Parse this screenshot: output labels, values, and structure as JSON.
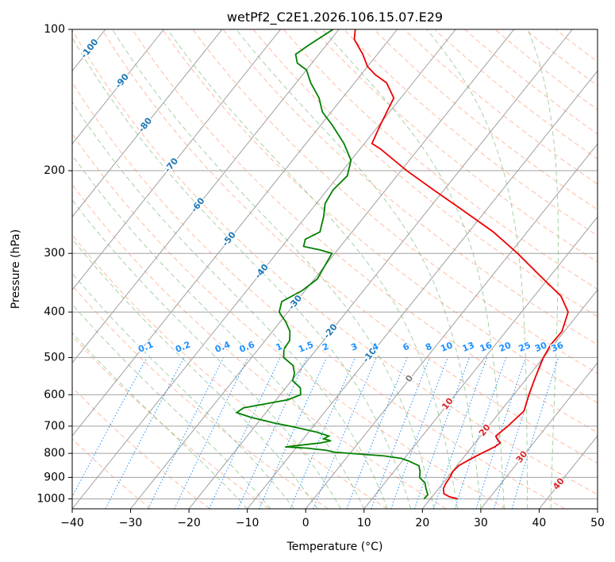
{
  "chart_data": {
    "type": "line",
    "title": "wetPf2_C2E1.2026.106.15.07.E29",
    "xlabel": "Temperature (°C)",
    "ylabel": "Pressure (hPa)",
    "xlim": [
      -40,
      50
    ],
    "ylim": [
      1050,
      100
    ],
    "x_ticks": [
      -40,
      -30,
      -20,
      -10,
      0,
      10,
      20,
      30,
      40,
      50
    ],
    "x_tick_labels": [
      "−40",
      "−30",
      "−20",
      "−10",
      "0",
      "10",
      "20",
      "30",
      "40",
      "50"
    ],
    "y_ticks": [
      1000,
      900,
      800,
      700,
      600,
      500,
      400,
      300,
      200,
      100
    ],
    "y_tick_labels": [
      "1000",
      "900",
      "800",
      "700",
      "600",
      "500",
      "400",
      "300",
      "200",
      "100"
    ],
    "grid": true,
    "colors": {
      "temperature": "#ee0000",
      "dewpoint": "#008000",
      "isotherm": "#a0a0a0",
      "dry_adiabat": "#ffa07a",
      "moist_adiabat": "#7fbf7f",
      "mixing_ratio": "#1e90ff",
      "isotherm_label": "#1f77b4",
      "zero_label": "#808080",
      "warm_label": "#d62728"
    },
    "series": [
      {
        "name": "Temperature",
        "points": [
          [
            1000,
            24.7
          ],
          [
            990,
            23.0
          ],
          [
            975,
            21.6
          ],
          [
            950,
            20.8
          ],
          [
            925,
            20.5
          ],
          [
            900,
            20.4
          ],
          [
            875,
            20.1
          ],
          [
            850,
            20.3
          ],
          [
            825,
            21.3
          ],
          [
            800,
            22.5
          ],
          [
            775,
            23.9
          ],
          [
            760,
            24.3
          ],
          [
            745,
            23.2
          ],
          [
            735,
            22.6
          ],
          [
            700,
            23.3
          ],
          [
            650,
            24.0
          ],
          [
            600,
            22.6
          ],
          [
            550,
            21.3
          ],
          [
            500,
            20.0
          ],
          [
            470,
            19.5
          ],
          [
            440,
            19.6
          ],
          [
            400,
            18.0
          ],
          [
            370,
            14.6
          ],
          [
            340,
            9.2
          ],
          [
            300,
            1.3
          ],
          [
            270,
            -5.8
          ],
          [
            240,
            -14.9
          ],
          [
            220,
            -21.7
          ],
          [
            200,
            -29.0
          ],
          [
            180,
            -36.4
          ],
          [
            175,
            -38.7
          ],
          [
            160,
            -39.8
          ],
          [
            140,
            -41.2
          ],
          [
            130,
            -44.5
          ],
          [
            125,
            -47.5
          ],
          [
            120,
            -50.0
          ],
          [
            113,
            -52.5
          ],
          [
            105,
            -56.0
          ],
          [
            100,
            -57.2
          ]
        ]
      },
      {
        "name": "Dewpoint",
        "points": [
          [
            1000,
            18.9
          ],
          [
            980,
            19.0
          ],
          [
            950,
            17.8
          ],
          [
            925,
            16.9
          ],
          [
            900,
            15.2
          ],
          [
            875,
            14.5
          ],
          [
            850,
            13.5
          ],
          [
            830,
            11.0
          ],
          [
            820,
            9.5
          ],
          [
            810,
            6.2
          ],
          [
            800,
            0.0
          ],
          [
            795,
            -3.0
          ],
          [
            788,
            -4.5
          ],
          [
            780,
            -8.0
          ],
          [
            775,
            -12.0
          ],
          [
            760,
            -6.5
          ],
          [
            752,
            -5.0
          ],
          [
            745,
            -6.5
          ],
          [
            735,
            -6.0
          ],
          [
            720,
            -8.8
          ],
          [
            700,
            -14.0
          ],
          [
            690,
            -17.0
          ],
          [
            670,
            -22.0
          ],
          [
            655,
            -25.0
          ],
          [
            640,
            -24.5
          ],
          [
            615,
            -18.0
          ],
          [
            600,
            -16.5
          ],
          [
            580,
            -17.5
          ],
          [
            560,
            -19.8
          ],
          [
            540,
            -20.5
          ],
          [
            520,
            -21.8
          ],
          [
            500,
            -24.5
          ],
          [
            480,
            -25.6
          ],
          [
            460,
            -25.8
          ],
          [
            440,
            -27.0
          ],
          [
            420,
            -29.0
          ],
          [
            400,
            -31.5
          ],
          [
            380,
            -32.5
          ],
          [
            360,
            -30.5
          ],
          [
            340,
            -29.5
          ],
          [
            320,
            -30.0
          ],
          [
            300,
            -30.5
          ],
          [
            295,
            -33.0
          ],
          [
            290,
            -36.3
          ],
          [
            280,
            -37.0
          ],
          [
            270,
            -35.5
          ],
          [
            250,
            -37.0
          ],
          [
            235,
            -38.5
          ],
          [
            220,
            -39.0
          ],
          [
            205,
            -38.5
          ],
          [
            190,
            -40.0
          ],
          [
            175,
            -43.5
          ],
          [
            160,
            -48.0
          ],
          [
            150,
            -51.5
          ],
          [
            140,
            -54.0
          ],
          [
            130,
            -57.5
          ],
          [
            122,
            -60.0
          ],
          [
            118,
            -62.5
          ],
          [
            113,
            -64.0
          ],
          [
            108,
            -63.0
          ],
          [
            100,
            -61.0
          ]
        ]
      }
    ],
    "isotherm_labels": [
      {
        "label": "-100",
        "t": -100,
        "p": 110
      },
      {
        "label": "-90",
        "t": -90,
        "p": 129
      },
      {
        "label": "-80",
        "t": -80,
        "p": 160
      },
      {
        "label": "-70",
        "t": -70,
        "p": 195
      },
      {
        "label": "-60",
        "t": -60,
        "p": 237
      },
      {
        "label": "-50",
        "t": -50,
        "p": 280
      },
      {
        "label": "-40",
        "t": -40,
        "p": 328
      },
      {
        "label": "-30",
        "t": -30,
        "p": 382
      },
      {
        "label": "-20",
        "t": -20,
        "p": 440
      },
      {
        "label": "-10",
        "t": -10,
        "p": 495
      },
      {
        "label": "0",
        "t": 0,
        "p": 555
      },
      {
        "label": "10",
        "t": 10,
        "p": 628
      },
      {
        "label": "20",
        "t": 20,
        "p": 715
      },
      {
        "label": "30",
        "t": 30,
        "p": 815
      },
      {
        "label": "40",
        "t": 40,
        "p": 930
      }
    ],
    "mixing_ratio_labels": [
      "0.1",
      "0.2",
      "0.4",
      "0.6",
      "1",
      "1.5",
      "2",
      "3",
      "4",
      "6",
      "8",
      "10",
      "13",
      "16",
      "20",
      "25",
      "30",
      "36"
    ],
    "mixing_ratio_values": [
      0.1,
      0.2,
      0.4,
      0.6,
      1,
      1.5,
      2,
      3,
      4,
      6,
      8,
      10,
      13,
      16,
      20,
      25,
      30,
      36
    ]
  }
}
